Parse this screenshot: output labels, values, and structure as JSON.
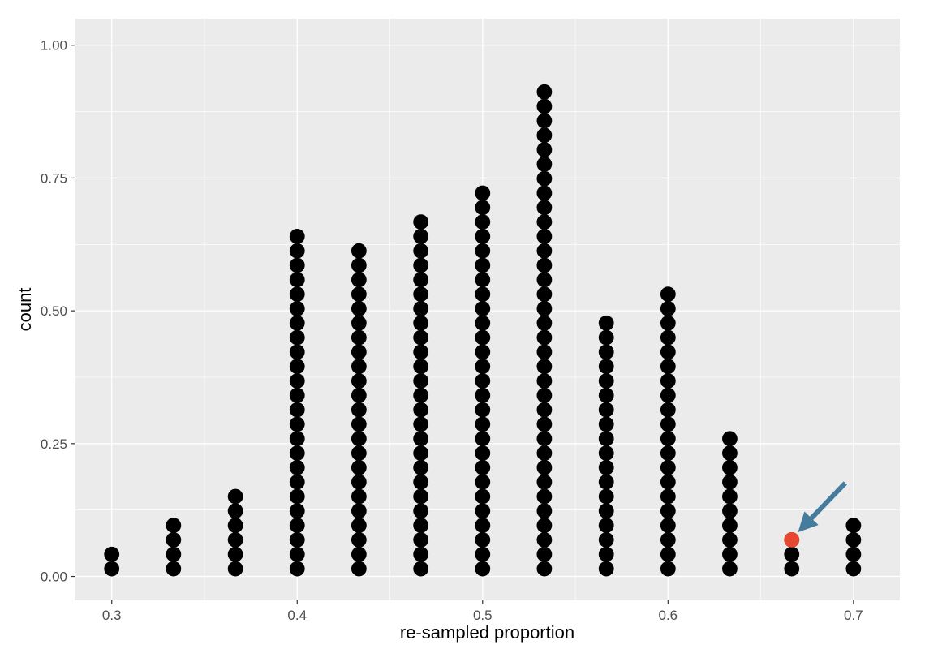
{
  "chart_data": {
    "type": "dotplot",
    "xlabel": "re-sampled proportion",
    "ylabel": "count",
    "xlim": [
      0.28,
      0.725
    ],
    "ylim": [
      -0.045,
      1.05
    ],
    "x_ticks": [
      0.3,
      0.4,
      0.5,
      0.6,
      0.7
    ],
    "x_tick_labels": [
      "0.3",
      "0.4",
      "0.5",
      "0.6",
      "0.7"
    ],
    "y_ticks": [
      0,
      0.25,
      0.5,
      0.75,
      1
    ],
    "y_tick_labels": [
      "0.00",
      "0.25",
      "0.50",
      "0.75",
      "1.00"
    ],
    "grid": true,
    "dot_columns": [
      {
        "x": 0.3,
        "count": 2
      },
      {
        "x": 0.3333,
        "count": 4
      },
      {
        "x": 0.3667,
        "count": 6
      },
      {
        "x": 0.4,
        "count": 24
      },
      {
        "x": 0.4333,
        "count": 23
      },
      {
        "x": 0.4667,
        "count": 25
      },
      {
        "x": 0.5,
        "count": 27
      },
      {
        "x": 0.5333,
        "count": 34
      },
      {
        "x": 0.5667,
        "count": 18
      },
      {
        "x": 0.6,
        "count": 20
      },
      {
        "x": 0.6333,
        "count": 10
      },
      {
        "x": 0.6667,
        "count": 3
      },
      {
        "x": 0.7,
        "count": 4
      }
    ],
    "highlight": {
      "x": 0.6667,
      "index": 3,
      "color": "#e8472f"
    },
    "annotation_arrow_color": "#457b9d",
    "dot_color": "#000000",
    "panel_background": "#ebebeb",
    "gridline_color": "#ffffff"
  }
}
